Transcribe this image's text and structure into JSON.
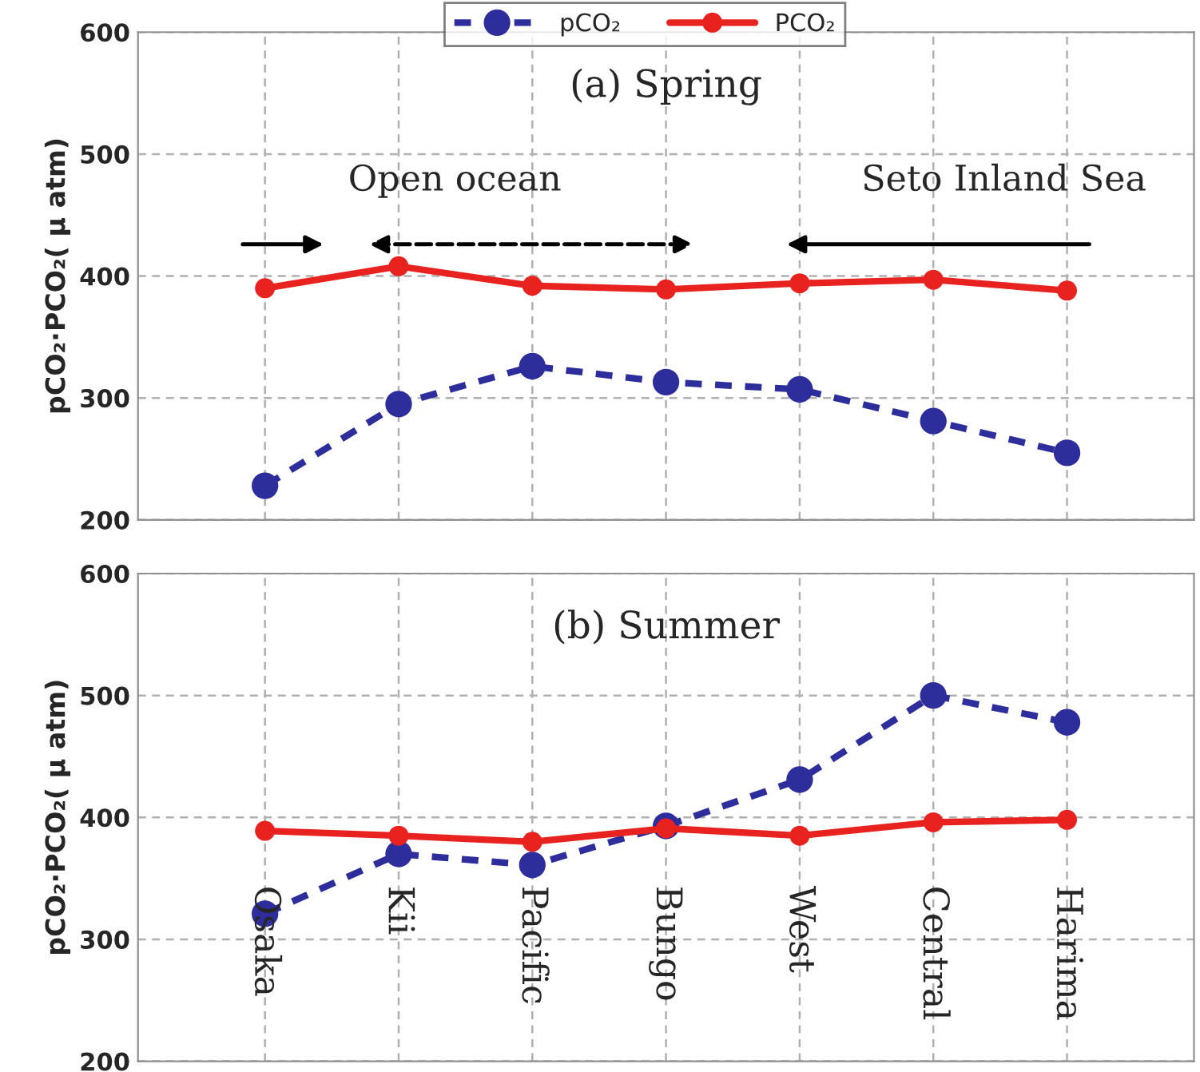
{
  "chart_data": [
    {
      "type": "line",
      "title": "(a) Spring",
      "categories": [
        null,
        null,
        null,
        null,
        null,
        null,
        null
      ],
      "series": [
        {
          "name": "pCO₂",
          "color": "#2e2d9c",
          "line_style": "dashed",
          "values": [
            228,
            295,
            326,
            313,
            307,
            281,
            255
          ]
        },
        {
          "name": "PCO₂",
          "color": "#e8231f",
          "line_style": "solid",
          "values": [
            390,
            408,
            392,
            389,
            394,
            397,
            388
          ]
        }
      ],
      "marker": "circle",
      "ylabel": "pCO₂·PCO₂( μ atm)",
      "ylim": [
        200,
        600
      ],
      "yticks": [
        200,
        300,
        400,
        500,
        600
      ],
      "grid": true,
      "legend": "top",
      "tick_labels": "y",
      "annotations": [
        "Open ocean",
        "Seto Inland Sea"
      ]
    },
    {
      "type": "line",
      "title": "(b) Summer",
      "categories": [
        "Osaka",
        "Kii",
        "Pacific",
        "Bungo",
        "West",
        "Central",
        "Harima"
      ],
      "series": [
        {
          "color": "#2e2d9c",
          "line_style": "dashed",
          "values": [
            321,
            370,
            361,
            393,
            431,
            500,
            478
          ]
        },
        {
          "color": "#e8231f",
          "line_style": "solid",
          "values": [
            389,
            385,
            380,
            391,
            385,
            396,
            398
          ]
        }
      ],
      "marker": "circle",
      "ylabel": "pCO₂·PCO₂( μ atm)",
      "ylim": [
        200,
        600
      ],
      "yticks": [
        200,
        300,
        400,
        500,
        600
      ],
      "grid": true
    }
  ]
}
